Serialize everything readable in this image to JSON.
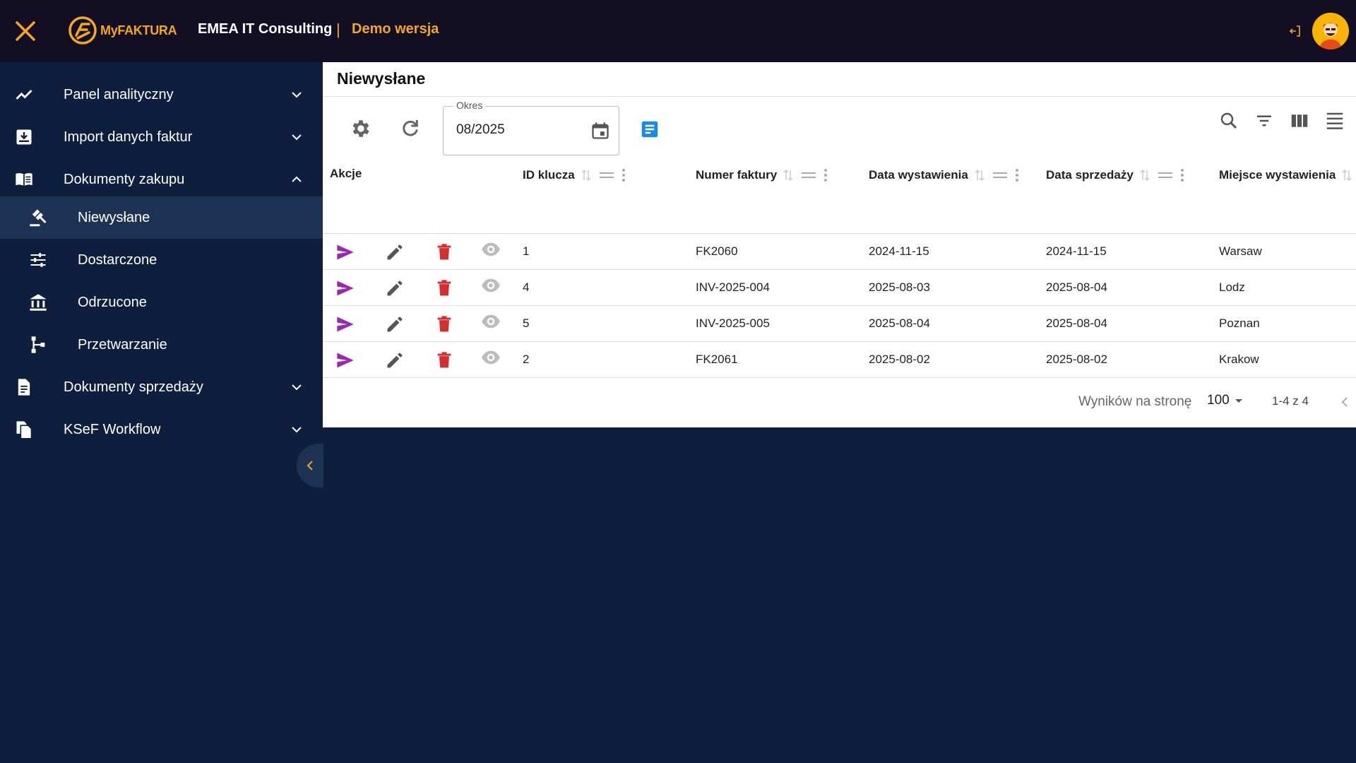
{
  "header": {
    "logo_text": "MyFAKTURA",
    "company": "EMEA IT Consulting",
    "separator": "|",
    "mode": "Demo wersja"
  },
  "sidebar": {
    "items": [
      {
        "label": "Panel analityczny",
        "icon": "trending-up-icon",
        "expanded": false
      },
      {
        "label": "Import danych faktur",
        "icon": "download-box-icon",
        "expanded": false
      },
      {
        "label": "Dokumenty zakupu",
        "icon": "book-open-icon",
        "expanded": true
      },
      {
        "label": "Niewysłane",
        "icon": "gavel-icon",
        "sub": true,
        "active": true
      },
      {
        "label": "Dostarczone",
        "icon": "tune-icon",
        "sub": true
      },
      {
        "label": "Odrzucone",
        "icon": "bank-icon",
        "sub": true
      },
      {
        "label": "Przetwarzanie",
        "icon": "flow-icon",
        "sub": true
      },
      {
        "label": "Dokumenty sprzedaży",
        "icon": "document-icon",
        "expanded": false
      },
      {
        "label": "KSeF Workflow",
        "icon": "files-icon",
        "expanded": false
      }
    ]
  },
  "main": {
    "title": "Niewysłane",
    "okres_label": "Okres",
    "okres_value": "08/2025",
    "columns": {
      "akcje": "Akcje",
      "id": "ID klucza",
      "numer": "Numer faktury",
      "data_wyst": "Data wystawienia",
      "data_sprz": "Data sprzedaży",
      "miejsce": "Miejsce wystawienia"
    },
    "rows": [
      {
        "id": "1",
        "numer": "FK2060",
        "data_wyst": "2024-11-15",
        "data_sprz": "2024-11-15",
        "miejsce": "Warsaw"
      },
      {
        "id": "4",
        "numer": "INV-2025-004",
        "data_wyst": "2025-08-03",
        "data_sprz": "2025-08-04",
        "miejsce": "Lodz"
      },
      {
        "id": "5",
        "numer": "INV-2025-005",
        "data_wyst": "2025-08-04",
        "data_sprz": "2025-08-04",
        "miejsce": "Poznan"
      },
      {
        "id": "2",
        "numer": "FK2061",
        "data_wyst": "2025-08-02",
        "data_sprz": "2025-08-02",
        "miejsce": "Krakow"
      }
    ],
    "footer": {
      "per_page_label": "Wyników na stronę",
      "per_page_value": "100",
      "range": "1-4 z 4"
    }
  },
  "colors": {
    "topbar": "#120f24",
    "sidebar": "#0d1f3c",
    "accent_orange": "#f5a623",
    "send_purple": "#9c27b0",
    "delete_red": "#d32f2f",
    "doc_blue": "#1e88e5"
  }
}
